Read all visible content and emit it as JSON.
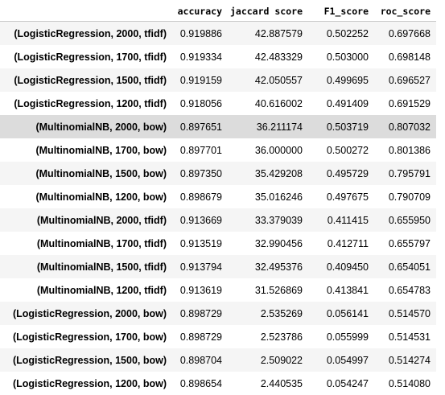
{
  "table": {
    "columns": [
      "accuracy",
      "jaccard score",
      "F1_score",
      "roc_score"
    ],
    "highlighted_row": 4,
    "rows": [
      {
        "index": "(LogisticRegression, 2000, tfidf)",
        "cells": [
          "0.919886",
          "42.887579",
          "0.502252",
          "0.697668"
        ]
      },
      {
        "index": "(LogisticRegression, 1700, tfidf)",
        "cells": [
          "0.919334",
          "42.483329",
          "0.503000",
          "0.698148"
        ]
      },
      {
        "index": "(LogisticRegression, 1500, tfidf)",
        "cells": [
          "0.919159",
          "42.050557",
          "0.499695",
          "0.696527"
        ]
      },
      {
        "index": "(LogisticRegression, 1200, tfidf)",
        "cells": [
          "0.918056",
          "40.616002",
          "0.491409",
          "0.691529"
        ]
      },
      {
        "index": "(MultinomialNB, 2000, bow)",
        "cells": [
          "0.897651",
          "36.211174",
          "0.503719",
          "0.807032"
        ]
      },
      {
        "index": "(MultinomialNB, 1700, bow)",
        "cells": [
          "0.897701",
          "36.000000",
          "0.500272",
          "0.801386"
        ]
      },
      {
        "index": "(MultinomialNB, 1500, bow)",
        "cells": [
          "0.897350",
          "35.429208",
          "0.495729",
          "0.795791"
        ]
      },
      {
        "index": "(MultinomialNB, 1200, bow)",
        "cells": [
          "0.898679",
          "35.016246",
          "0.497675",
          "0.790709"
        ]
      },
      {
        "index": "(MultinomialNB, 2000, tfidf)",
        "cells": [
          "0.913669",
          "33.379039",
          "0.411415",
          "0.655950"
        ]
      },
      {
        "index": "(MultinomialNB, 1700, tfidf)",
        "cells": [
          "0.913519",
          "32.990456",
          "0.412711",
          "0.655797"
        ]
      },
      {
        "index": "(MultinomialNB, 1500, tfidf)",
        "cells": [
          "0.913794",
          "32.495376",
          "0.409450",
          "0.654051"
        ]
      },
      {
        "index": "(MultinomialNB, 1200, tfidf)",
        "cells": [
          "0.913619",
          "31.526869",
          "0.413841",
          "0.654783"
        ]
      },
      {
        "index": "(LogisticRegression, 2000, bow)",
        "cells": [
          "0.898729",
          "2.535269",
          "0.056141",
          "0.514570"
        ]
      },
      {
        "index": "(LogisticRegression, 1700, bow)",
        "cells": [
          "0.898729",
          "2.523786",
          "0.055999",
          "0.514531"
        ]
      },
      {
        "index": "(LogisticRegression, 1500, bow)",
        "cells": [
          "0.898704",
          "2.509022",
          "0.054997",
          "0.514274"
        ]
      },
      {
        "index": "(LogisticRegression, 1200, bow)",
        "cells": [
          "0.898654",
          "2.440535",
          "0.054247",
          "0.514080"
        ]
      }
    ]
  }
}
